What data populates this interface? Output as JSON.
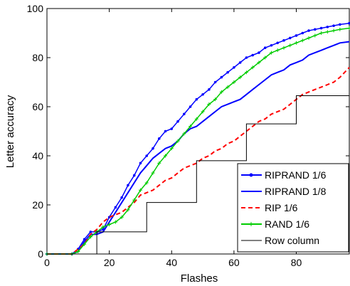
{
  "chart_data": {
    "type": "line",
    "title": "",
    "xlabel": "Flashes",
    "ylabel": "Letter accuracy",
    "xlim": [
      0,
      97
    ],
    "ylim": [
      0,
      100
    ],
    "x_ticks": [
      0,
      20,
      40,
      60,
      80
    ],
    "y_ticks": [
      0,
      20,
      40,
      60,
      80,
      100
    ],
    "grid": false,
    "legend_position": "bottom-right",
    "series": [
      {
        "name": "RIPRAND 1/6",
        "color": "#0000ff",
        "style": "solid",
        "marker": "dot",
        "points": [
          [
            0,
            0
          ],
          [
            8,
            0
          ],
          [
            10,
            2
          ],
          [
            12,
            6
          ],
          [
            14,
            9
          ],
          [
            16,
            9
          ],
          [
            18,
            10
          ],
          [
            20,
            15
          ],
          [
            22,
            19
          ],
          [
            24,
            23
          ],
          [
            26,
            28
          ],
          [
            28,
            32
          ],
          [
            30,
            37
          ],
          [
            32,
            40
          ],
          [
            34,
            43
          ],
          [
            36,
            47
          ],
          [
            38,
            50
          ],
          [
            40,
            51
          ],
          [
            42,
            54
          ],
          [
            44,
            57
          ],
          [
            46,
            60
          ],
          [
            48,
            63
          ],
          [
            50,
            65
          ],
          [
            52,
            67
          ],
          [
            54,
            70
          ],
          [
            56,
            72
          ],
          [
            58,
            74
          ],
          [
            60,
            76
          ],
          [
            62,
            78
          ],
          [
            64,
            80
          ],
          [
            66,
            81
          ],
          [
            68,
            82
          ],
          [
            70,
            84
          ],
          [
            72,
            85
          ],
          [
            74,
            86
          ],
          [
            76,
            87
          ],
          [
            78,
            88
          ],
          [
            80,
            89
          ],
          [
            82,
            90
          ],
          [
            84,
            91
          ],
          [
            86,
            91.5
          ],
          [
            88,
            92
          ],
          [
            90,
            92.5
          ],
          [
            92,
            93
          ],
          [
            94,
            93.5
          ],
          [
            97,
            94
          ]
        ]
      },
      {
        "name": "RIPRAND 1/8",
        "color": "#0000ff",
        "style": "solid",
        "marker": "none",
        "points": [
          [
            0,
            0
          ],
          [
            8,
            0
          ],
          [
            10,
            1
          ],
          [
            12,
            5
          ],
          [
            14,
            8
          ],
          [
            16,
            8
          ],
          [
            18,
            9
          ],
          [
            20,
            13
          ],
          [
            22,
            17
          ],
          [
            24,
            21
          ],
          [
            26,
            25
          ],
          [
            28,
            29
          ],
          [
            30,
            33
          ],
          [
            32,
            36
          ],
          [
            34,
            39
          ],
          [
            36,
            41
          ],
          [
            38,
            43
          ],
          [
            40,
            44
          ],
          [
            42,
            46
          ],
          [
            44,
            49
          ],
          [
            46,
            51
          ],
          [
            48,
            52
          ],
          [
            50,
            54
          ],
          [
            52,
            56
          ],
          [
            54,
            58
          ],
          [
            56,
            60
          ],
          [
            58,
            61
          ],
          [
            60,
            62
          ],
          [
            62,
            63
          ],
          [
            64,
            65
          ],
          [
            66,
            67
          ],
          [
            68,
            69
          ],
          [
            70,
            71
          ],
          [
            72,
            73
          ],
          [
            74,
            74
          ],
          [
            76,
            75
          ],
          [
            78,
            77
          ],
          [
            80,
            78
          ],
          [
            82,
            79
          ],
          [
            84,
            81
          ],
          [
            86,
            82
          ],
          [
            88,
            83
          ],
          [
            90,
            84
          ],
          [
            92,
            85
          ],
          [
            94,
            86
          ],
          [
            97,
            86.5
          ]
        ]
      },
      {
        "name": "RIP 1/6",
        "color": "#ff0000",
        "style": "dashed",
        "marker": "none",
        "points": [
          [
            0,
            0
          ],
          [
            8,
            0
          ],
          [
            10,
            2
          ],
          [
            12,
            4
          ],
          [
            14,
            8
          ],
          [
            16,
            10
          ],
          [
            18,
            13
          ],
          [
            20,
            15
          ],
          [
            22,
            16
          ],
          [
            24,
            17
          ],
          [
            26,
            19
          ],
          [
            28,
            21
          ],
          [
            30,
            24
          ],
          [
            32,
            25
          ],
          [
            34,
            26
          ],
          [
            36,
            28
          ],
          [
            38,
            30
          ],
          [
            40,
            31
          ],
          [
            42,
            33
          ],
          [
            44,
            35
          ],
          [
            46,
            36
          ],
          [
            48,
            37
          ],
          [
            50,
            39
          ],
          [
            52,
            40
          ],
          [
            54,
            42
          ],
          [
            56,
            43
          ],
          [
            58,
            45
          ],
          [
            60,
            46
          ],
          [
            62,
            48
          ],
          [
            64,
            50
          ],
          [
            66,
            52
          ],
          [
            68,
            54
          ],
          [
            70,
            55
          ],
          [
            72,
            57
          ],
          [
            74,
            58
          ],
          [
            76,
            59
          ],
          [
            78,
            61
          ],
          [
            80,
            63
          ],
          [
            82,
            65
          ],
          [
            84,
            66
          ],
          [
            86,
            67
          ],
          [
            88,
            68
          ],
          [
            90,
            69
          ],
          [
            92,
            70
          ],
          [
            94,
            72
          ],
          [
            97,
            76
          ]
        ]
      },
      {
        "name": "RAND 1/6",
        "color": "#00cc00",
        "style": "solid",
        "marker": "plus",
        "points": [
          [
            0,
            0
          ],
          [
            8,
            0
          ],
          [
            10,
            1
          ],
          [
            12,
            4
          ],
          [
            14,
            7
          ],
          [
            16,
            9
          ],
          [
            18,
            11
          ],
          [
            20,
            12
          ],
          [
            22,
            13
          ],
          [
            24,
            15
          ],
          [
            26,
            18
          ],
          [
            28,
            22
          ],
          [
            30,
            26
          ],
          [
            32,
            29
          ],
          [
            34,
            33
          ],
          [
            36,
            37
          ],
          [
            38,
            40
          ],
          [
            40,
            43
          ],
          [
            42,
            46
          ],
          [
            44,
            49
          ],
          [
            46,
            52
          ],
          [
            48,
            55
          ],
          [
            50,
            58
          ],
          [
            52,
            61
          ],
          [
            54,
            63
          ],
          [
            56,
            66
          ],
          [
            58,
            68
          ],
          [
            60,
            70
          ],
          [
            62,
            72
          ],
          [
            64,
            74
          ],
          [
            66,
            76
          ],
          [
            68,
            78
          ],
          [
            70,
            80
          ],
          [
            72,
            82
          ],
          [
            74,
            83
          ],
          [
            76,
            84
          ],
          [
            78,
            85
          ],
          [
            80,
            86
          ],
          [
            82,
            87
          ],
          [
            84,
            88
          ],
          [
            86,
            89
          ],
          [
            88,
            90
          ],
          [
            90,
            90.5
          ],
          [
            92,
            91
          ],
          [
            94,
            91.5
          ],
          [
            97,
            92
          ]
        ]
      },
      {
        "name": "Row column",
        "color": "#000000",
        "style": "solid",
        "marker": "none",
        "points": [
          [
            0,
            0
          ],
          [
            16,
            0
          ],
          [
            16,
            9
          ],
          [
            32,
            9
          ],
          [
            32,
            21
          ],
          [
            48,
            21
          ],
          [
            48,
            38
          ],
          [
            64,
            38
          ],
          [
            64,
            53
          ],
          [
            80,
            53
          ],
          [
            80,
            64.5
          ],
          [
            97,
            64.5
          ]
        ]
      }
    ]
  }
}
